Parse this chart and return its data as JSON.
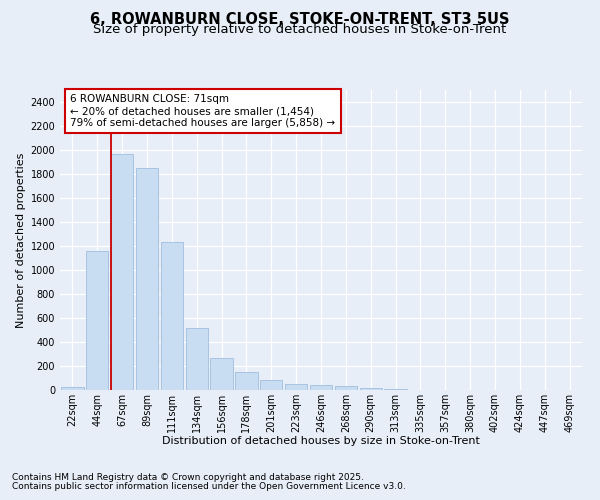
{
  "title1": "6, ROWANBURN CLOSE, STOKE-ON-TRENT, ST3 5US",
  "title2": "Size of property relative to detached houses in Stoke-on-Trent",
  "xlabel": "Distribution of detached houses by size in Stoke-on-Trent",
  "ylabel": "Number of detached properties",
  "categories": [
    "22sqm",
    "44sqm",
    "67sqm",
    "89sqm",
    "111sqm",
    "134sqm",
    "156sqm",
    "178sqm",
    "201sqm",
    "223sqm",
    "246sqm",
    "268sqm",
    "290sqm",
    "313sqm",
    "335sqm",
    "357sqm",
    "380sqm",
    "402sqm",
    "424sqm",
    "447sqm",
    "469sqm"
  ],
  "values": [
    25,
    1160,
    1970,
    1850,
    1230,
    520,
    270,
    150,
    85,
    50,
    40,
    35,
    15,
    5,
    2,
    2,
    1,
    1,
    1,
    0,
    0
  ],
  "bar_color": "#c9ddf2",
  "bar_edge_color": "#a0bede",
  "vline_x_idx": 2,
  "vline_color": "#cc0000",
  "annotation_line1": "6 ROWANBURN CLOSE: 71sqm",
  "annotation_line2": "← 20% of detached houses are smaller (1,454)",
  "annotation_line3": "79% of semi-detached houses are larger (5,858) →",
  "annotation_box_color": "#ffffff",
  "annotation_box_edge": "#cc0000",
  "ylim": [
    0,
    2500
  ],
  "yticks": [
    0,
    200,
    400,
    600,
    800,
    1000,
    1200,
    1400,
    1600,
    1800,
    2000,
    2200,
    2400
  ],
  "bg_color": "#e8eef8",
  "plot_bg_color": "#e8eef8",
  "footer1": "Contains HM Land Registry data © Crown copyright and database right 2025.",
  "footer2": "Contains public sector information licensed under the Open Government Licence v3.0.",
  "title1_fontsize": 10.5,
  "title2_fontsize": 9.5,
  "axis_label_fontsize": 8,
  "tick_fontsize": 7,
  "annotation_fontsize": 7.5,
  "footer_fontsize": 6.5
}
